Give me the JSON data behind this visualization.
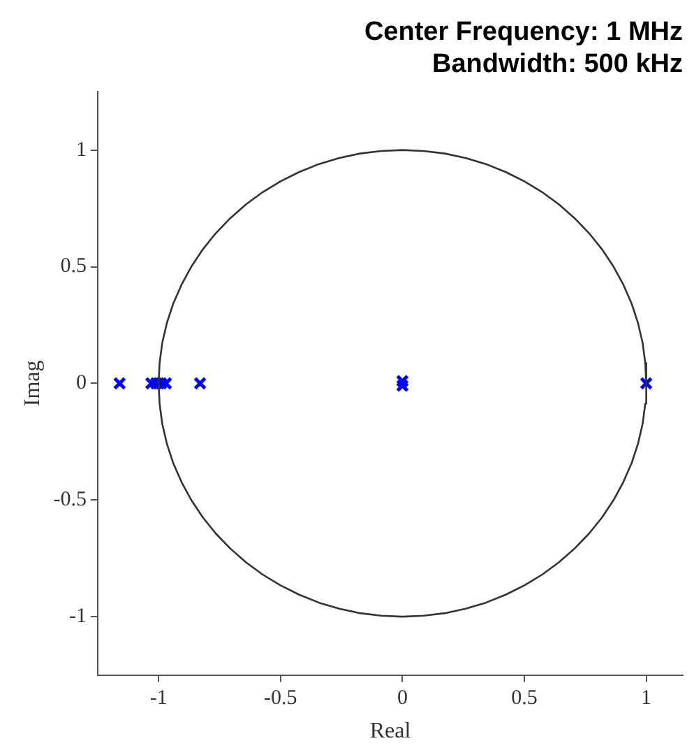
{
  "chart_data": {
    "type": "scatter",
    "title": [
      "Center Frequency: 1 MHz",
      "Bandwidth: 500 kHz"
    ],
    "xlabel": "Real",
    "ylabel": "Imag",
    "xlim": [
      -1.25,
      1.15
    ],
    "ylim": [
      -1.25,
      1.25
    ],
    "xticks": [
      -1,
      -0.5,
      0,
      0.5,
      1
    ],
    "yticks": [
      -1,
      -0.5,
      0,
      0.5,
      1
    ],
    "grid": false,
    "legend": false,
    "marker": "cross",
    "series": [
      {
        "type": "line",
        "color": "#333333",
        "marker": "none",
        "x": [
          -1,
          -0.996,
          -0.985,
          -0.966,
          -0.94,
          -0.906,
          -0.866,
          -0.819,
          -0.766,
          -0.707,
          -0.643,
          -0.574,
          -0.5,
          -0.423,
          -0.342,
          -0.259,
          -0.174,
          -0.087,
          0,
          0.087,
          0.174,
          0.259,
          0.342,
          0.423,
          0.5,
          0.574,
          0.643,
          0.707,
          0.766,
          0.819,
          0.866,
          0.906,
          0.94,
          0.966,
          0.985,
          0.996,
          1
        ],
        "values": [
          0,
          0.087,
          0.174,
          0.259,
          0.342,
          0.423,
          0.5,
          0.574,
          0.643,
          0.707,
          0.766,
          0.819,
          0.866,
          0.906,
          0.94,
          0.966,
          0.985,
          0.996,
          1,
          0.996,
          0.985,
          0.966,
          0.94,
          0.906,
          0.866,
          0.819,
          0.766,
          0.707,
          0.643,
          0.574,
          0.5,
          0.423,
          0.342,
          0.259,
          0.174,
          0.087,
          0
        ]
      },
      {
        "type": "line",
        "color": "#333333",
        "marker": "none",
        "x": [
          -1,
          -0.996,
          -0.985,
          -0.966,
          -0.94,
          -0.906,
          -0.866,
          -0.819,
          -0.766,
          -0.707,
          -0.643,
          -0.574,
          -0.5,
          -0.423,
          -0.342,
          -0.259,
          -0.174,
          -0.087,
          0,
          0.087,
          0.174,
          0.259,
          0.342,
          0.423,
          0.5,
          0.574,
          0.643,
          0.707,
          0.766,
          0.819,
          0.866,
          0.906,
          0.94,
          0.966,
          0.985,
          0.996,
          1
        ],
        "values": [
          0,
          -0.087,
          -0.174,
          -0.259,
          -0.342,
          -0.423,
          -0.5,
          -0.574,
          -0.643,
          -0.707,
          -0.766,
          -0.819,
          -0.866,
          -0.906,
          -0.94,
          -0.966,
          -0.985,
          -0.996,
          -1,
          -0.996,
          -0.985,
          -0.966,
          -0.94,
          -0.906,
          -0.866,
          -0.819,
          -0.766,
          -0.707,
          -0.643,
          -0.574,
          -0.5,
          -0.423,
          -0.342,
          -0.259,
          -0.174,
          -0.087,
          0
        ]
      },
      {
        "color": "#0000ff",
        "x": [
          -1.16,
          -1.03,
          -1.01,
          -0.99,
          -0.97,
          -0.83,
          0,
          0,
          1
        ],
        "values": [
          0,
          0,
          0,
          0,
          0,
          0,
          0.01,
          -0.01,
          0
        ]
      }
    ]
  }
}
